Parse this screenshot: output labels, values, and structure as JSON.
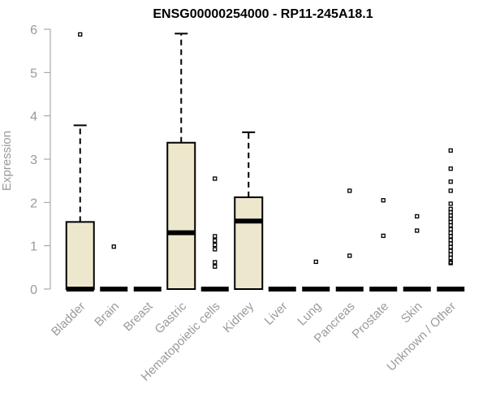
{
  "chart_data": {
    "type": "box",
    "title": "ENSG00000254000 - RP11-245A18.1",
    "xlabel": "",
    "ylabel": "Expression",
    "ylim": [
      0,
      6
    ],
    "yticks": [
      0,
      1,
      2,
      3,
      4,
      5,
      6
    ],
    "grid": false,
    "colors": {
      "box_fill": "#ede7cd",
      "axis": "#9a9a9a",
      "text": "#000000"
    },
    "categories": [
      "Bladder",
      "Brain",
      "Breast",
      "Gastric",
      "Hematopoietic cells",
      "Kidney",
      "Liver",
      "Lung",
      "Pancreas",
      "Prostate",
      "Skin",
      "Unknown / Other"
    ],
    "boxes": [
      {
        "category": "Bladder",
        "whisker_low": 0,
        "q1": 0,
        "median": 0,
        "q3": 1.55,
        "whisker_high": 3.78,
        "outliers": [
          5.88
        ]
      },
      {
        "category": "Brain",
        "whisker_low": 0,
        "q1": 0,
        "median": 0,
        "q3": 0,
        "whisker_high": 0,
        "outliers": [
          0.98
        ]
      },
      {
        "category": "Breast",
        "whisker_low": 0,
        "q1": 0,
        "median": 0,
        "q3": 0,
        "whisker_high": 0,
        "outliers": []
      },
      {
        "category": "Gastric",
        "whisker_low": 0,
        "q1": 0,
        "median": 1.3,
        "q3": 3.38,
        "whisker_high": 5.9,
        "outliers": []
      },
      {
        "category": "Hematopoietic cells",
        "whisker_low": 0,
        "q1": 0,
        "median": 0,
        "q3": 0,
        "whisker_high": 0,
        "outliers": [
          2.55,
          1.22,
          1.12,
          1.02,
          0.92,
          0.62,
          0.52
        ]
      },
      {
        "category": "Kidney",
        "whisker_low": 0,
        "q1": 0,
        "median": 1.57,
        "q3": 2.12,
        "whisker_high": 3.62,
        "outliers": []
      },
      {
        "category": "Liver",
        "whisker_low": 0,
        "q1": 0,
        "median": 0,
        "q3": 0,
        "whisker_high": 0,
        "outliers": []
      },
      {
        "category": "Lung",
        "whisker_low": 0,
        "q1": 0,
        "median": 0,
        "q3": 0,
        "whisker_high": 0,
        "outliers": [
          0.63
        ]
      },
      {
        "category": "Pancreas",
        "whisker_low": 0,
        "q1": 0,
        "median": 0,
        "q3": 0,
        "whisker_high": 0,
        "outliers": [
          2.27,
          0.77
        ]
      },
      {
        "category": "Prostate",
        "whisker_low": 0,
        "q1": 0,
        "median": 0,
        "q3": 0,
        "whisker_high": 0,
        "outliers": [
          2.05,
          1.23
        ]
      },
      {
        "category": "Skin",
        "whisker_low": 0,
        "q1": 0,
        "median": 0,
        "q3": 0,
        "whisker_high": 0,
        "outliers": [
          1.68,
          1.35
        ]
      },
      {
        "category": "Unknown / Other",
        "whisker_low": 0,
        "q1": 0,
        "median": 0,
        "q3": 0,
        "whisker_high": 0,
        "outliers": [
          3.2,
          2.78,
          2.48,
          2.27,
          1.97,
          1.85,
          1.77,
          1.7,
          1.62,
          1.55,
          1.47,
          1.38,
          1.3,
          1.22,
          1.13,
          1.05,
          0.97,
          0.88,
          0.8,
          0.72,
          0.62,
          0.6
        ]
      }
    ]
  }
}
